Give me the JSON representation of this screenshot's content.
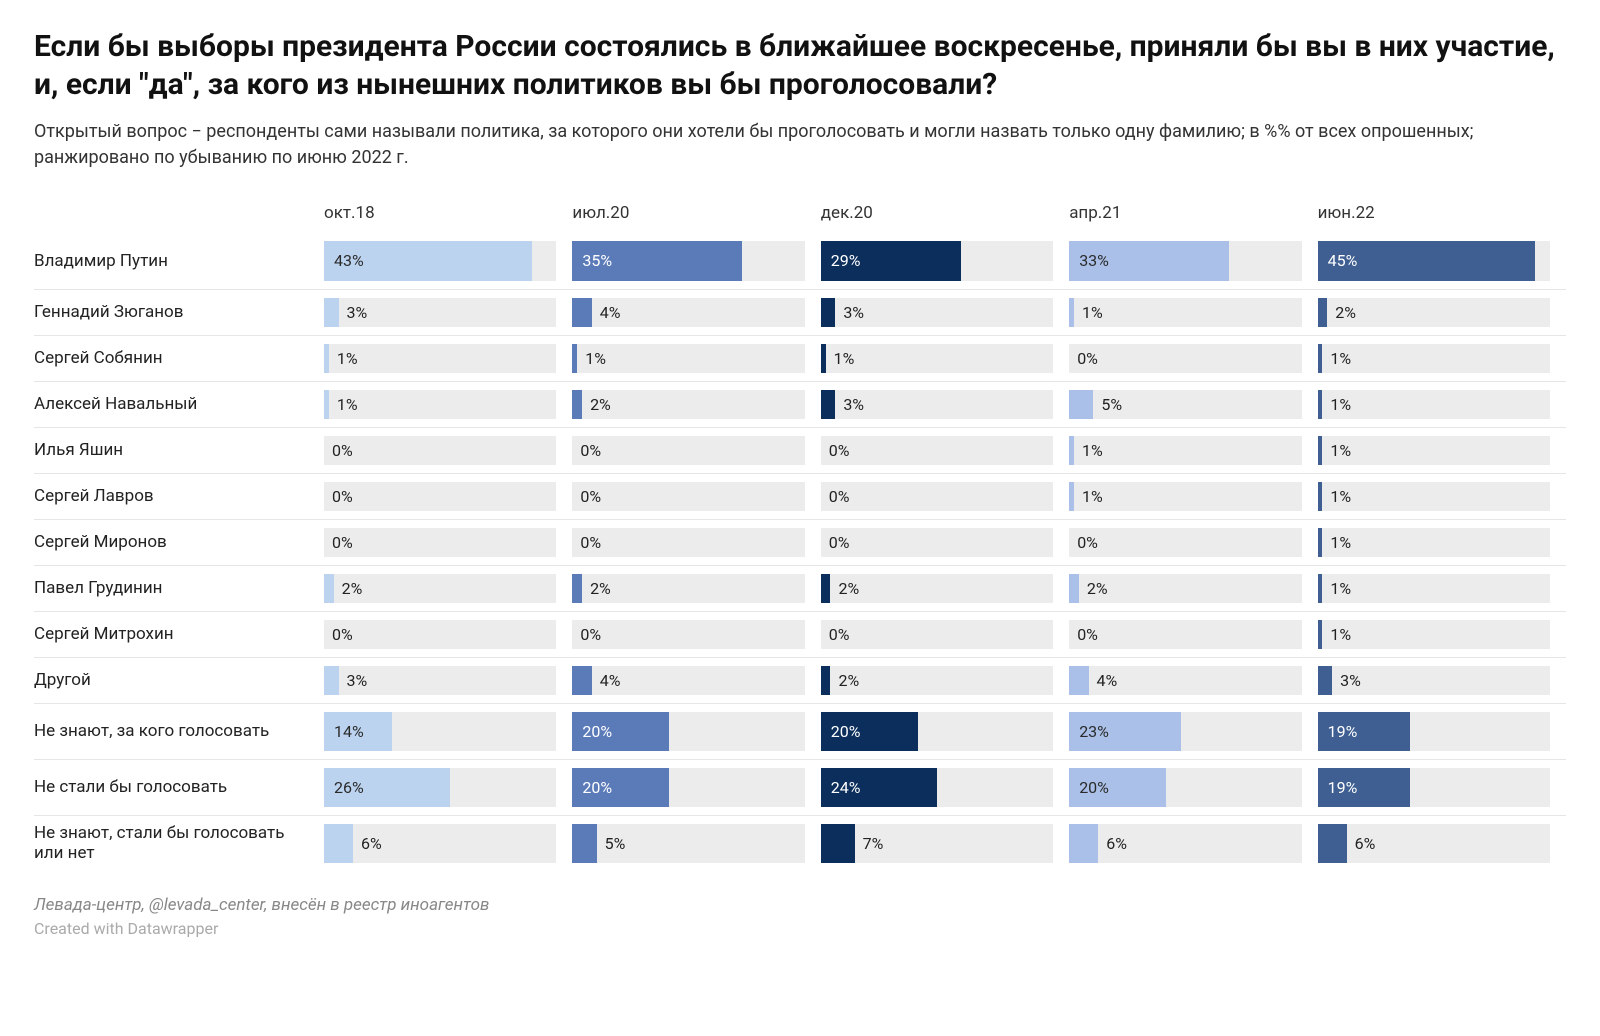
{
  "title": "Если бы выборы президента России состоялись в ближайшее воскресенье, приняли бы вы в них участие, и, если \"да\", за кого из нынешних политиков вы бы проголосовали?",
  "subtitle": "Открытый вопрос − респонденты сами называли политика, за которого они хотели бы проголосовать и могли назвать только одну фамилию; в %% от всех опрошенных; ранжировано по убыванию по июню 2022 г.",
  "footer_source": "Левада-центр, @levada_center, внесён в реестр иноагентов",
  "footer_credit": "Created with Datawrapper",
  "chart": {
    "type": "grouped-bar-table",
    "value_suffix": "%",
    "scale_max": 48,
    "track_background": "#ececec",
    "row_border_color": "#e6e6e6",
    "text_color_dark": "#222222",
    "text_color_inside_light": "#ffffff",
    "text_color_inside_dark": "#2a2a2a",
    "row_height_normal": 46,
    "row_height_large": 56,
    "columns": [
      {
        "key": "oct18",
        "label": "окт.18",
        "color": "#bcd3ef"
      },
      {
        "key": "jul20",
        "label": "июл.20",
        "color": "#5b7ab8"
      },
      {
        "key": "dec20",
        "label": "дек.20",
        "color": "#0b2e5c"
      },
      {
        "key": "apr21",
        "label": "апр.21",
        "color": "#aac0e8"
      },
      {
        "key": "jun22",
        "label": "июн.22",
        "color": "#3f5f92"
      }
    ],
    "rows": [
      {
        "label": "Владимир Путин",
        "height": "large",
        "values": [
          43,
          35,
          29,
          33,
          45
        ]
      },
      {
        "label": "Геннадий Зюганов",
        "height": "normal",
        "values": [
          3,
          4,
          3,
          1,
          2
        ]
      },
      {
        "label": "Сергей Собянин",
        "height": "normal",
        "values": [
          1,
          1,
          1,
          0,
          1
        ]
      },
      {
        "label": "Алексей Навальный",
        "height": "normal",
        "values": [
          1,
          2,
          3,
          5,
          1
        ]
      },
      {
        "label": "Илья Яшин",
        "height": "normal",
        "values": [
          0,
          0,
          0,
          1,
          1
        ]
      },
      {
        "label": "Сергей Лавров",
        "height": "normal",
        "values": [
          0,
          0,
          0,
          1,
          1
        ]
      },
      {
        "label": "Сергей Миронов",
        "height": "normal",
        "values": [
          0,
          0,
          0,
          0,
          1
        ]
      },
      {
        "label": "Павел Грудинин",
        "height": "normal",
        "values": [
          2,
          2,
          2,
          2,
          1
        ]
      },
      {
        "label": "Сергей Митрохин",
        "height": "normal",
        "values": [
          0,
          0,
          0,
          0,
          1
        ]
      },
      {
        "label": "Другой",
        "height": "normal",
        "values": [
          3,
          4,
          2,
          4,
          3
        ]
      },
      {
        "label": "Не знают, за кого голосовать",
        "height": "large",
        "values": [
          14,
          20,
          20,
          23,
          19
        ]
      },
      {
        "label": "Не стали бы голосовать",
        "height": "large",
        "values": [
          26,
          20,
          24,
          20,
          19
        ]
      },
      {
        "label": "Не знают, стали бы голосовать или нет",
        "height": "large",
        "values": [
          6,
          5,
          7,
          6,
          6
        ]
      }
    ]
  }
}
